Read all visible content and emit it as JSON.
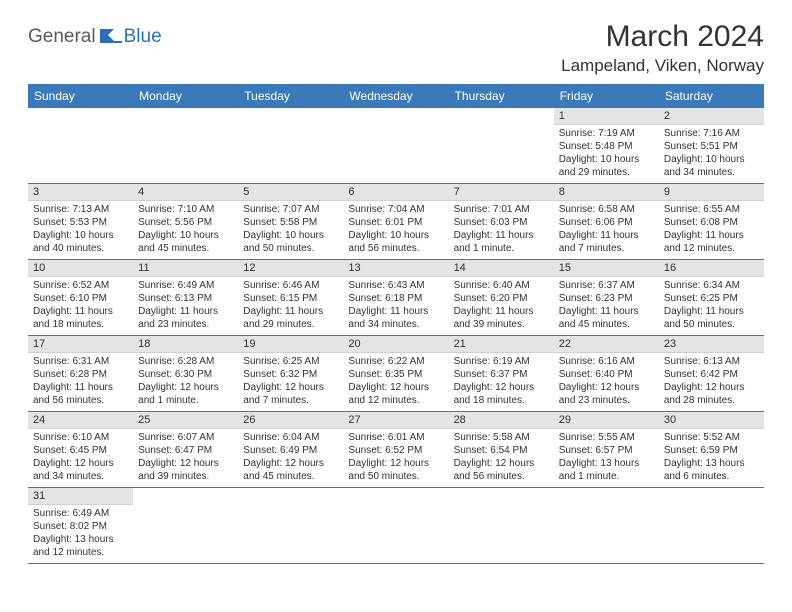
{
  "brand": {
    "part1": "General",
    "part2": "Blue"
  },
  "title": "March 2024",
  "location": "Lampeland, Viken, Norway",
  "colors": {
    "header_bg": "#3a7ab8",
    "header_text": "#ffffff",
    "daynum_bg": "#e4e4e4",
    "border": "#3a7ab8",
    "brand_gray": "#5a5a5a",
    "brand_blue": "#2a70b8"
  },
  "weekdays": [
    "Sunday",
    "Monday",
    "Tuesday",
    "Wednesday",
    "Thursday",
    "Friday",
    "Saturday"
  ],
  "weeks": [
    [
      null,
      null,
      null,
      null,
      null,
      {
        "d": "1",
        "sr": "Sunrise: 7:19 AM",
        "ss": "Sunset: 5:48 PM",
        "dl": "Daylight: 10 hours and 29 minutes."
      },
      {
        "d": "2",
        "sr": "Sunrise: 7:16 AM",
        "ss": "Sunset: 5:51 PM",
        "dl": "Daylight: 10 hours and 34 minutes."
      }
    ],
    [
      {
        "d": "3",
        "sr": "Sunrise: 7:13 AM",
        "ss": "Sunset: 5:53 PM",
        "dl": "Daylight: 10 hours and 40 minutes."
      },
      {
        "d": "4",
        "sr": "Sunrise: 7:10 AM",
        "ss": "Sunset: 5:56 PM",
        "dl": "Daylight: 10 hours and 45 minutes."
      },
      {
        "d": "5",
        "sr": "Sunrise: 7:07 AM",
        "ss": "Sunset: 5:58 PM",
        "dl": "Daylight: 10 hours and 50 minutes."
      },
      {
        "d": "6",
        "sr": "Sunrise: 7:04 AM",
        "ss": "Sunset: 6:01 PM",
        "dl": "Daylight: 10 hours and 56 minutes."
      },
      {
        "d": "7",
        "sr": "Sunrise: 7:01 AM",
        "ss": "Sunset: 6:03 PM",
        "dl": "Daylight: 11 hours and 1 minute."
      },
      {
        "d": "8",
        "sr": "Sunrise: 6:58 AM",
        "ss": "Sunset: 6:06 PM",
        "dl": "Daylight: 11 hours and 7 minutes."
      },
      {
        "d": "9",
        "sr": "Sunrise: 6:55 AM",
        "ss": "Sunset: 6:08 PM",
        "dl": "Daylight: 11 hours and 12 minutes."
      }
    ],
    [
      {
        "d": "10",
        "sr": "Sunrise: 6:52 AM",
        "ss": "Sunset: 6:10 PM",
        "dl": "Daylight: 11 hours and 18 minutes."
      },
      {
        "d": "11",
        "sr": "Sunrise: 6:49 AM",
        "ss": "Sunset: 6:13 PM",
        "dl": "Daylight: 11 hours and 23 minutes."
      },
      {
        "d": "12",
        "sr": "Sunrise: 6:46 AM",
        "ss": "Sunset: 6:15 PM",
        "dl": "Daylight: 11 hours and 29 minutes."
      },
      {
        "d": "13",
        "sr": "Sunrise: 6:43 AM",
        "ss": "Sunset: 6:18 PM",
        "dl": "Daylight: 11 hours and 34 minutes."
      },
      {
        "d": "14",
        "sr": "Sunrise: 6:40 AM",
        "ss": "Sunset: 6:20 PM",
        "dl": "Daylight: 11 hours and 39 minutes."
      },
      {
        "d": "15",
        "sr": "Sunrise: 6:37 AM",
        "ss": "Sunset: 6:23 PM",
        "dl": "Daylight: 11 hours and 45 minutes."
      },
      {
        "d": "16",
        "sr": "Sunrise: 6:34 AM",
        "ss": "Sunset: 6:25 PM",
        "dl": "Daylight: 11 hours and 50 minutes."
      }
    ],
    [
      {
        "d": "17",
        "sr": "Sunrise: 6:31 AM",
        "ss": "Sunset: 6:28 PM",
        "dl": "Daylight: 11 hours and 56 minutes."
      },
      {
        "d": "18",
        "sr": "Sunrise: 6:28 AM",
        "ss": "Sunset: 6:30 PM",
        "dl": "Daylight: 12 hours and 1 minute."
      },
      {
        "d": "19",
        "sr": "Sunrise: 6:25 AM",
        "ss": "Sunset: 6:32 PM",
        "dl": "Daylight: 12 hours and 7 minutes."
      },
      {
        "d": "20",
        "sr": "Sunrise: 6:22 AM",
        "ss": "Sunset: 6:35 PM",
        "dl": "Daylight: 12 hours and 12 minutes."
      },
      {
        "d": "21",
        "sr": "Sunrise: 6:19 AM",
        "ss": "Sunset: 6:37 PM",
        "dl": "Daylight: 12 hours and 18 minutes."
      },
      {
        "d": "22",
        "sr": "Sunrise: 6:16 AM",
        "ss": "Sunset: 6:40 PM",
        "dl": "Daylight: 12 hours and 23 minutes."
      },
      {
        "d": "23",
        "sr": "Sunrise: 6:13 AM",
        "ss": "Sunset: 6:42 PM",
        "dl": "Daylight: 12 hours and 28 minutes."
      }
    ],
    [
      {
        "d": "24",
        "sr": "Sunrise: 6:10 AM",
        "ss": "Sunset: 6:45 PM",
        "dl": "Daylight: 12 hours and 34 minutes."
      },
      {
        "d": "25",
        "sr": "Sunrise: 6:07 AM",
        "ss": "Sunset: 6:47 PM",
        "dl": "Daylight: 12 hours and 39 minutes."
      },
      {
        "d": "26",
        "sr": "Sunrise: 6:04 AM",
        "ss": "Sunset: 6:49 PM",
        "dl": "Daylight: 12 hours and 45 minutes."
      },
      {
        "d": "27",
        "sr": "Sunrise: 6:01 AM",
        "ss": "Sunset: 6:52 PM",
        "dl": "Daylight: 12 hours and 50 minutes."
      },
      {
        "d": "28",
        "sr": "Sunrise: 5:58 AM",
        "ss": "Sunset: 6:54 PM",
        "dl": "Daylight: 12 hours and 56 minutes."
      },
      {
        "d": "29",
        "sr": "Sunrise: 5:55 AM",
        "ss": "Sunset: 6:57 PM",
        "dl": "Daylight: 13 hours and 1 minute."
      },
      {
        "d": "30",
        "sr": "Sunrise: 5:52 AM",
        "ss": "Sunset: 6:59 PM",
        "dl": "Daylight: 13 hours and 6 minutes."
      }
    ],
    [
      {
        "d": "31",
        "sr": "Sunrise: 6:49 AM",
        "ss": "Sunset: 8:02 PM",
        "dl": "Daylight: 13 hours and 12 minutes."
      },
      null,
      null,
      null,
      null,
      null,
      null
    ]
  ]
}
